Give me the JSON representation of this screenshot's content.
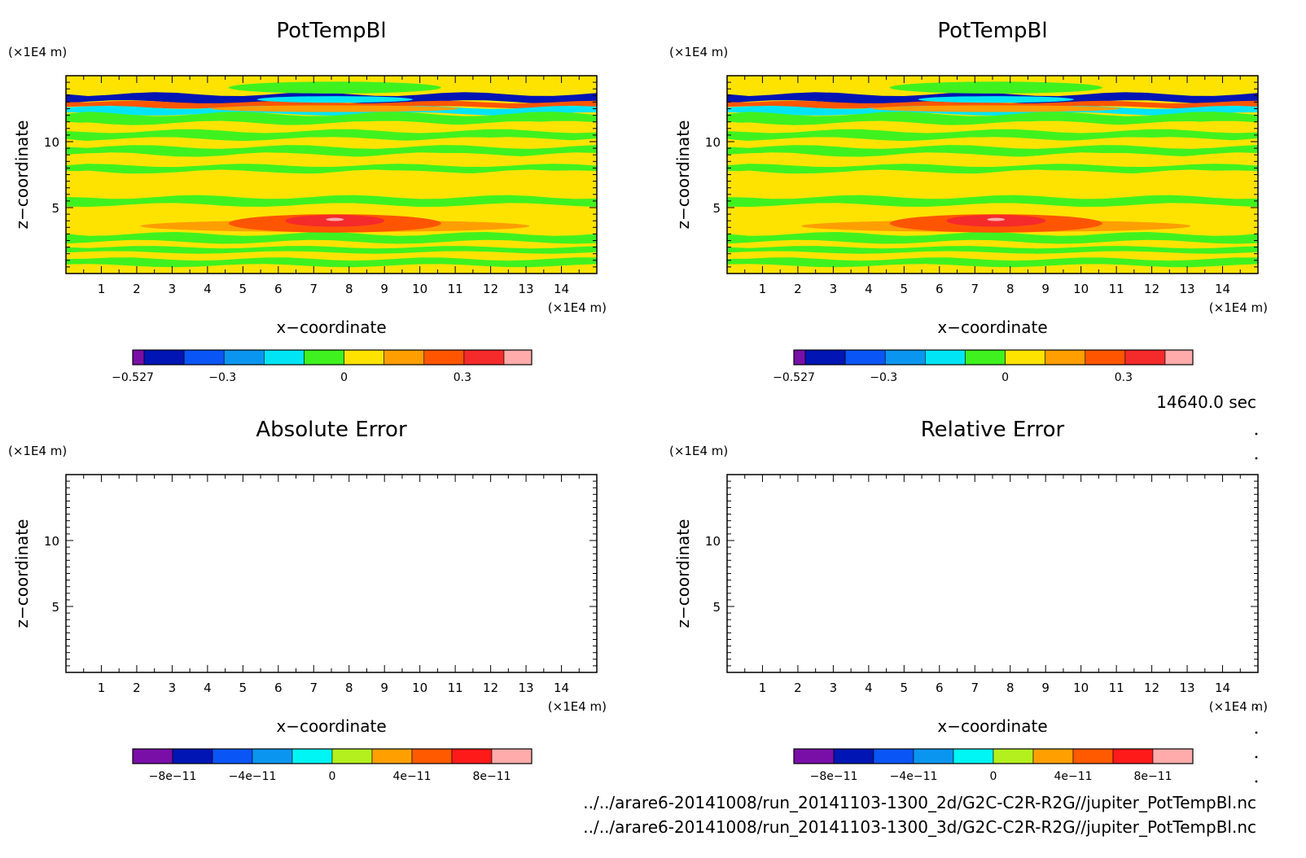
{
  "time_label": "14640.0 sec",
  "files": [
    "../../arare6-20141008/run_20141103-1300_2d/G2C-C2R-R2G//jupiter_PotTempBl.nc",
    "../../arare6-20141008/run_20141103-1300_3d/G2C-C2R-R2G//jupiter_PotTempBl.nc"
  ],
  "chart_data": [
    {
      "type": "heatmap",
      "title": "PotTempBl",
      "xlabel": "x−coordinate",
      "ylabel": "z−coordinate",
      "x_unit": "(×1E4 m)",
      "z_unit": "(×1E4 m)",
      "xlim": [
        0,
        15
      ],
      "ylim": [
        0,
        15
      ],
      "xticks": [
        1,
        2,
        3,
        4,
        5,
        6,
        7,
        8,
        9,
        10,
        11,
        12,
        13,
        14
      ],
      "yticks": [
        5,
        10
      ],
      "colorbar": {
        "levels": [
          "#7a0fa8",
          "#0015b4",
          "#0a55f5",
          "#0a96f0",
          "#00e5f5",
          "#3ff21f",
          "#ffe300",
          "#ff9e00",
          "#ff5500",
          "#f52a2a",
          "#ffabab"
        ],
        "ticks": [
          "−0.527",
          "−0.3",
          "0",
          "0.3"
        ]
      },
      "bands": [
        {
          "z": [
            13.6,
            14.3
          ],
          "color": "#ffe300"
        },
        {
          "z": [
            13.0,
            13.6
          ],
          "color": "#0015b4"
        },
        {
          "z": [
            12.6,
            13.0
          ],
          "color": "#ff5500"
        },
        {
          "z": [
            12.1,
            12.6
          ],
          "color": "#00e5f5"
        },
        {
          "z": [
            11.4,
            12.1
          ],
          "color": "#3ff21f"
        },
        {
          "z": [
            10.8,
            11.4
          ],
          "color": "#ffe300"
        },
        {
          "z": [
            10.2,
            10.8
          ],
          "color": "#3ff21f"
        },
        {
          "z": [
            9.6,
            10.2
          ],
          "color": "#ffe300"
        },
        {
          "z": [
            9.0,
            9.6
          ],
          "color": "#3ff21f"
        },
        {
          "z": [
            8.2,
            9.0
          ],
          "color": "#ffe300"
        },
        {
          "z": [
            7.7,
            8.2
          ],
          "color": "#3ff21f"
        },
        {
          "z": [
            7.0,
            7.7
          ],
          "color": "#ffe300"
        },
        {
          "z": [
            5.2,
            5.8
          ],
          "color": "#3ff21f"
        },
        {
          "z": [
            2.4,
            3.0
          ],
          "color": "#3ff21f"
        },
        {
          "z": [
            1.6,
            2.0
          ],
          "color": "#3ff21f"
        },
        {
          "z": [
            0.6,
            1.1
          ],
          "color": "#3ff21f"
        }
      ],
      "blobs": [
        {
          "x": 7.6,
          "z": 3.6,
          "rx": 5.5,
          "rz": 0.45,
          "color": "#ff9e00"
        },
        {
          "x": 7.6,
          "z": 3.8,
          "rx": 3.0,
          "rz": 0.7,
          "color": "#ff5500"
        },
        {
          "x": 7.6,
          "z": 4.0,
          "rx": 1.4,
          "rz": 0.45,
          "color": "#f52a2a"
        },
        {
          "x": 7.6,
          "z": 4.1,
          "rx": 0.25,
          "rz": 0.12,
          "color": "#ffabab"
        },
        {
          "x": 7.6,
          "z": 14.1,
          "rx": 3.0,
          "rz": 0.45,
          "color": "#3ff21f"
        },
        {
          "x": 7.6,
          "z": 12.5,
          "rx": 3.5,
          "rz": 0.25,
          "color": "#ff9e00"
        },
        {
          "x": 7.6,
          "z": 13.2,
          "rx": 2.2,
          "rz": 0.25,
          "color": "#00e5f5"
        }
      ]
    },
    {
      "type": "heatmap",
      "title": "PotTempBl",
      "xlabel": "x−coordinate",
      "ylabel": "z−coordinate",
      "x_unit": "(×1E4 m)",
      "z_unit": "(×1E4 m)",
      "xlim": [
        0,
        15
      ],
      "ylim": [
        0,
        15
      ],
      "xticks": [
        1,
        2,
        3,
        4,
        5,
        6,
        7,
        8,
        9,
        10,
        11,
        12,
        13,
        14
      ],
      "yticks": [
        5,
        10
      ],
      "colorbar": {
        "levels": [
          "#7a0fa8",
          "#0015b4",
          "#0a55f5",
          "#0a96f0",
          "#00e5f5",
          "#3ff21f",
          "#ffe300",
          "#ff9e00",
          "#ff5500",
          "#f52a2a",
          "#ffabab"
        ],
        "ticks": [
          "−0.527",
          "−0.3",
          "0",
          "0.3"
        ]
      },
      "bands": [
        {
          "z": [
            13.6,
            14.3
          ],
          "color": "#ffe300"
        },
        {
          "z": [
            13.0,
            13.6
          ],
          "color": "#0015b4"
        },
        {
          "z": [
            12.6,
            13.0
          ],
          "color": "#ff5500"
        },
        {
          "z": [
            12.1,
            12.6
          ],
          "color": "#00e5f5"
        },
        {
          "z": [
            11.4,
            12.1
          ],
          "color": "#3ff21f"
        },
        {
          "z": [
            10.8,
            11.4
          ],
          "color": "#ffe300"
        },
        {
          "z": [
            10.2,
            10.8
          ],
          "color": "#3ff21f"
        },
        {
          "z": [
            9.6,
            10.2
          ],
          "color": "#ffe300"
        },
        {
          "z": [
            9.0,
            9.6
          ],
          "color": "#3ff21f"
        },
        {
          "z": [
            8.2,
            9.0
          ],
          "color": "#ffe300"
        },
        {
          "z": [
            7.7,
            8.2
          ],
          "color": "#3ff21f"
        },
        {
          "z": [
            7.0,
            7.7
          ],
          "color": "#ffe300"
        },
        {
          "z": [
            5.2,
            5.8
          ],
          "color": "#3ff21f"
        },
        {
          "z": [
            2.4,
            3.0
          ],
          "color": "#3ff21f"
        },
        {
          "z": [
            1.6,
            2.0
          ],
          "color": "#3ff21f"
        },
        {
          "z": [
            0.6,
            1.1
          ],
          "color": "#3ff21f"
        }
      ],
      "blobs": [
        {
          "x": 7.6,
          "z": 3.6,
          "rx": 5.5,
          "rz": 0.45,
          "color": "#ff9e00"
        },
        {
          "x": 7.6,
          "z": 3.8,
          "rx": 3.0,
          "rz": 0.7,
          "color": "#ff5500"
        },
        {
          "x": 7.6,
          "z": 4.0,
          "rx": 1.4,
          "rz": 0.45,
          "color": "#f52a2a"
        },
        {
          "x": 7.6,
          "z": 4.1,
          "rx": 0.25,
          "rz": 0.12,
          "color": "#ffabab"
        },
        {
          "x": 7.6,
          "z": 14.1,
          "rx": 3.0,
          "rz": 0.45,
          "color": "#3ff21f"
        },
        {
          "x": 7.6,
          "z": 12.5,
          "rx": 3.5,
          "rz": 0.25,
          "color": "#ff9e00"
        },
        {
          "x": 7.6,
          "z": 13.2,
          "rx": 2.2,
          "rz": 0.25,
          "color": "#00e5f5"
        }
      ]
    },
    {
      "type": "heatmap",
      "title": "Absolute Error",
      "xlabel": "x−coordinate",
      "ylabel": "z−coordinate",
      "x_unit": "(×1E4 m)",
      "z_unit": "(×1E4 m)",
      "xlim": [
        0,
        15
      ],
      "ylim": [
        0,
        15
      ],
      "xticks": [
        1,
        2,
        3,
        4,
        5,
        6,
        7,
        8,
        9,
        10,
        11,
        12,
        13,
        14
      ],
      "yticks": [
        5,
        10
      ],
      "colorbar": {
        "levels": [
          "#7a0fa8",
          "#0015b4",
          "#0a55f5",
          "#0a96f0",
          "#00f5f5",
          "#b4f01e",
          "#ffa000",
          "#ff5a00",
          "#ff1a1a",
          "#ffabab"
        ],
        "ticks": [
          "−8e−11",
          "−4e−11",
          "0",
          "4e−11",
          "8e−11"
        ]
      },
      "bands": [],
      "blobs": []
    },
    {
      "type": "heatmap",
      "title": "Relative Error",
      "xlabel": "x−coordinate",
      "ylabel": "z−coordinate",
      "x_unit": "(×1E4 m)",
      "z_unit": "(×1E4 m)",
      "xlim": [
        0,
        15
      ],
      "ylim": [
        0,
        15
      ],
      "xticks": [
        1,
        2,
        3,
        4,
        5,
        6,
        7,
        8,
        9,
        10,
        11,
        12,
        13,
        14
      ],
      "yticks": [
        5,
        10
      ],
      "colorbar": {
        "levels": [
          "#7a0fa8",
          "#0015b4",
          "#0a55f5",
          "#0a96f0",
          "#00f5f5",
          "#b4f01e",
          "#ffa000",
          "#ff5a00",
          "#ff1a1a",
          "#ffabab"
        ],
        "ticks": [
          "−8e−11",
          "−4e−11",
          "0",
          "4e−11",
          "8e−11"
        ]
      },
      "bands": [],
      "blobs": []
    }
  ]
}
